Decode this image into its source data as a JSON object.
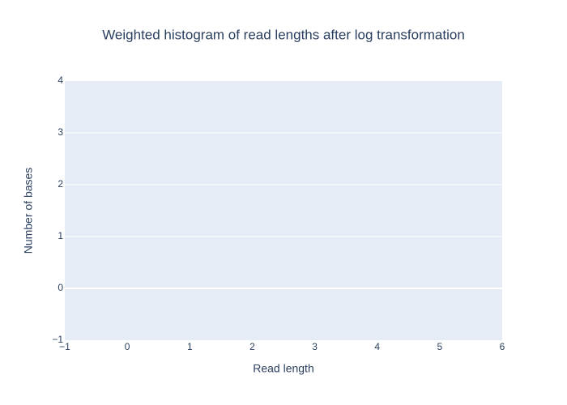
{
  "chart_data": {
    "type": "histogram",
    "title": "Weighted histogram of read lengths after log transformation",
    "x_label": "Read length",
    "y_label": "Number of bases",
    "xlim": [
      -1,
      6
    ],
    "xticks": [
      {
        "value": -1,
        "label": "−1"
      },
      0,
      1,
      2,
      3,
      4,
      5,
      6
    ],
    "ylim": [
      -1,
      4
    ],
    "yticks": [
      {
        "value": -1,
        "label": "−1"
      },
      0,
      1,
      2,
      3,
      4
    ],
    "ygrid": true,
    "xgrid": false
  }
}
